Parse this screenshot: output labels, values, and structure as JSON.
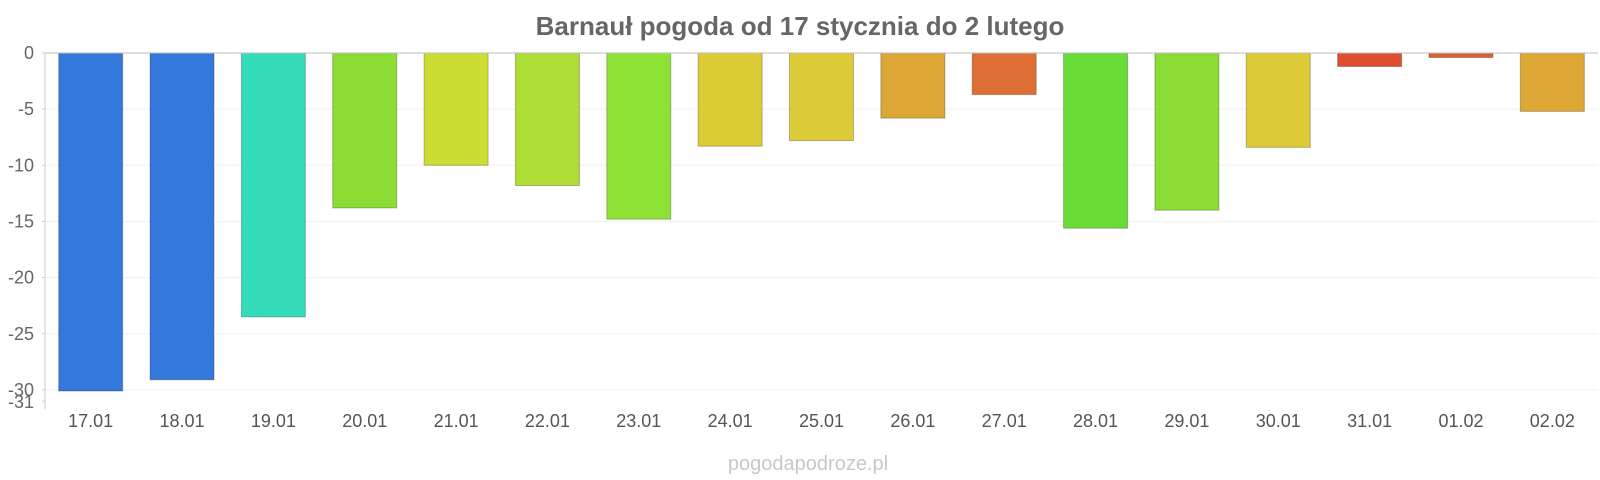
{
  "chart_data": {
    "type": "bar",
    "title": "Barnauł pogoda od 17 stycznia do 2 lutego",
    "xlabel": "",
    "ylabel": "",
    "categories": [
      "17.01",
      "18.01",
      "19.01",
      "20.01",
      "21.01",
      "22.01",
      "23.01",
      "24.01",
      "25.01",
      "26.01",
      "27.01",
      "28.01",
      "29.01",
      "30.01",
      "31.01",
      "01.02",
      "02.02"
    ],
    "values": [
      -30.1,
      -29.1,
      -23.5,
      -13.8,
      -10.0,
      -11.8,
      -14.8,
      -8.3,
      -7.8,
      -5.8,
      -3.7,
      -15.6,
      -14.0,
      -8.4,
      -1.2,
      -0.4,
      -5.2
    ],
    "colors": [
      "#3478dc",
      "#3478dc",
      "#35dcb9",
      "#8bdc35",
      "#cedd34",
      "#aedd36",
      "#8de235",
      "#dccc35",
      "#dccb36",
      "#dda735",
      "#df6f35",
      "#69dd36",
      "#8bdc35",
      "#dccb36",
      "#e04f2d",
      "#e05f30",
      "#dda735"
    ],
    "yticks": [
      0,
      -5,
      -10,
      -15,
      -20,
      -25,
      -30,
      -31
    ],
    "ylim": [
      -31,
      0
    ],
    "grid": true,
    "legend": "none"
  },
  "source": "pogodapodroze.pl"
}
